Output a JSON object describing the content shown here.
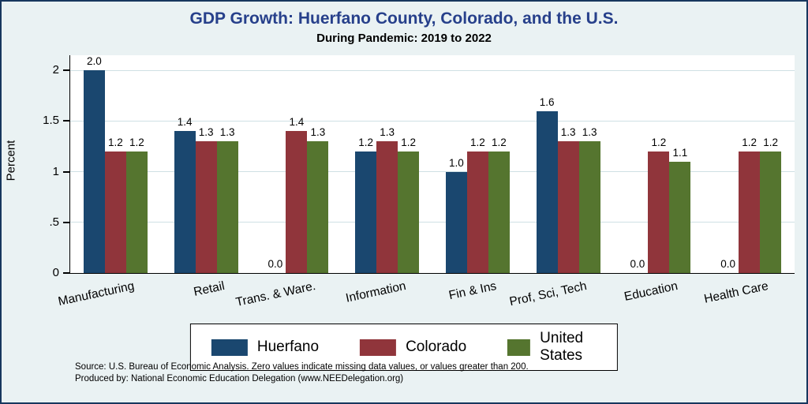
{
  "title": "GDP Growth: Huerfano County, Colorado, and the U.S.",
  "subtitle": "During Pandemic: 2019 to 2022",
  "chart_data": {
    "type": "bar",
    "categories": [
      "Manufacturing",
      "Retail",
      "Trans. & Ware.",
      "Information",
      "Fin & Ins",
      "Prof, Sci, Tech",
      "Education",
      "Health Care"
    ],
    "series": [
      {
        "name": "Huerfano",
        "color": "#1a476f",
        "values": [
          2.0,
          1.4,
          0.0,
          1.2,
          1.0,
          1.6,
          0.0,
          0.0
        ]
      },
      {
        "name": "Colorado",
        "color": "#90353b",
        "values": [
          1.2,
          1.3,
          1.4,
          1.3,
          1.2,
          1.3,
          1.2,
          1.2
        ]
      },
      {
        "name": "United States",
        "color": "#55752f",
        "values": [
          1.2,
          1.3,
          1.3,
          1.2,
          1.2,
          1.3,
          1.1,
          1.2
        ]
      }
    ],
    "title": "GDP Growth: Huerfano County, Colorado, and the U.S.",
    "subtitle": "During Pandemic: 2019 to 2022",
    "xlabel": "",
    "ylabel": "Percent",
    "ylim": [
      0,
      2.15
    ],
    "yticks": [
      "0",
      ".5",
      "1",
      "1.5",
      "2"
    ],
    "ytick_values": [
      0,
      0.5,
      1,
      1.5,
      2
    ],
    "grid": true,
    "legend_position": "bottom",
    "value_labels": "one-decimal"
  },
  "notes": {
    "line1": "Source: U.S. Bureau of Economic Analysis. Zero values indicate missing data values, or values greater than 200.",
    "line2": "Produced by: National Economic Education Delegation (www.NEEDelegation.org)"
  },
  "colors": {
    "background": "#eaf2f3",
    "plot_background": "#ffffff",
    "title": "#27408b",
    "gridline": "#cfe0e4",
    "frame_border": "#17375e"
  }
}
